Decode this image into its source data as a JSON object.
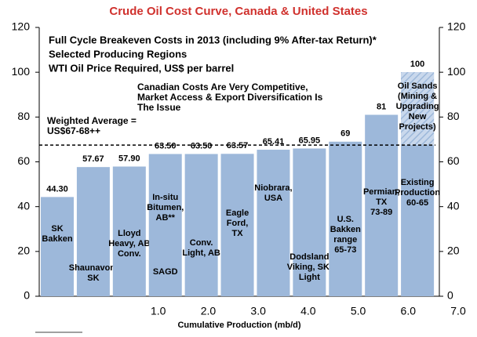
{
  "chart_data": {
    "type": "bar",
    "title": "Crude Oil Cost Curve, Canada & United States",
    "header": [
      "Full Cycle Breakeven Costs in 2013 (including 9% After-tax Return)*",
      "Selected Producing Regions",
      "WTI Oil Price Required, US$ per barrel"
    ],
    "annotation": [
      "Canadian Costs Are Very Competitive,",
      "Market Access & Export Diversification Is",
      "The Issue"
    ],
    "x_label": "Cumulative Production (mb/d)",
    "categories": [
      [
        "SK",
        "Bakken"
      ],
      [
        "Shaunavon,",
        "SK"
      ],
      [
        "Lloyd",
        "Heavy, AB",
        "Conv."
      ],
      [
        "In-situ",
        "Bitumen,",
        "AB**"
      ],
      [
        "Conv.",
        "Light, AB"
      ],
      [
        "Eagle",
        "Ford,",
        "TX"
      ],
      [
        "Niobrara,",
        "USA"
      ],
      [
        "Dodsland",
        "Viking, SK,",
        "Light"
      ],
      [
        "U.S.",
        "Bakken",
        "range",
        "65-73"
      ],
      [
        "Permian,",
        "TX",
        "73-89"
      ],
      [
        "Oil Sands",
        "(Mining &",
        "Upgrading",
        "New",
        "Projects)"
      ]
    ],
    "category_notes": [
      null,
      null,
      null,
      [
        "SAGD"
      ],
      null,
      null,
      null,
      null,
      null,
      null,
      [
        "Existing",
        "Production",
        "60-65"
      ]
    ],
    "values": [
      44.3,
      57.67,
      57.9,
      63.5,
      63.5,
      63.57,
      65.41,
      65.95,
      69,
      81,
      100
    ],
    "value_labels": [
      "44.30",
      "57.67",
      "57.90",
      "63.50",
      "63.50",
      "63.57",
      "65.41",
      "65.95",
      "69",
      "81",
      "100"
    ],
    "hatched": [
      false,
      false,
      false,
      false,
      false,
      false,
      false,
      false,
      false,
      false,
      true
    ],
    "color": "#9db8da",
    "reference_line": {
      "value": 67.5,
      "label": [
        "Weighted Average =",
        "US$67-68++"
      ]
    },
    "ylim": [
      0,
      120
    ],
    "yticks": [
      0,
      20,
      40,
      60,
      80,
      100,
      120
    ],
    "y2lim": [
      0,
      120
    ],
    "y2ticks": [
      0,
      20,
      40,
      60,
      80,
      100,
      120
    ],
    "xlim": [
      0,
      7
    ],
    "xticks": [
      {
        "value": 1,
        "label": "1.0"
      },
      {
        "value": 2,
        "label": "2.0"
      },
      {
        "value": 3,
        "label": "3.0"
      },
      {
        "value": 4,
        "label": "4.0"
      },
      {
        "value": 5,
        "label": "5.0"
      },
      {
        "value": 6,
        "label": "6.0"
      },
      {
        "value": 7,
        "label": "7.0"
      }
    ]
  }
}
